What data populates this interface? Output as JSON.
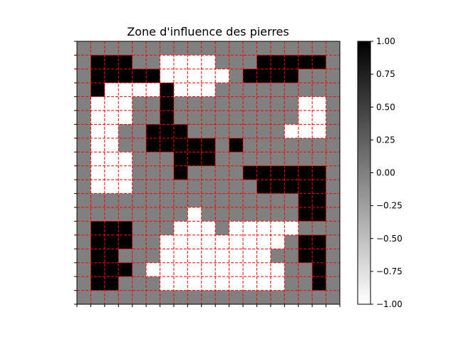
{
  "chart_data": {
    "type": "heatmap",
    "title": "Zone d'influence des pierres",
    "xlabel": "",
    "ylabel": "",
    "grid": true,
    "grid_color": "#ff0000",
    "grid_style": "dashed",
    "colormap": "gray_r",
    "vmin": -1,
    "vmax": 1,
    "colorbar": {
      "location": "right",
      "ticks": [
        1.0,
        0.75,
        0.5,
        0.25,
        0.0,
        -0.25,
        -0.5,
        -0.75,
        -1.0
      ],
      "tick_labels": [
        "1.00",
        "0.75",
        "0.50",
        "0.25",
        "0.00",
        "−0.25",
        "−0.50",
        "−0.75",
        "−1.00"
      ]
    },
    "values": [
      [
        0,
        0,
        0,
        0,
        0,
        0,
        0,
        0,
        0,
        0,
        0,
        0,
        0,
        0,
        0,
        0,
        0,
        0,
        0
      ],
      [
        0,
        1,
        1,
        1,
        0,
        0,
        -1,
        -1,
        -1,
        -1,
        0,
        0,
        0,
        1,
        1,
        1,
        1,
        1,
        0
      ],
      [
        0,
        1,
        1,
        1,
        1,
        1,
        -1,
        -1,
        -1,
        -1,
        -1,
        0,
        1,
        1,
        1,
        1,
        0,
        0,
        0
      ],
      [
        0,
        1,
        -1,
        -1,
        -1,
        -1,
        1,
        -1,
        -1,
        -1,
        0,
        0,
        0,
        0,
        0,
        0,
        0,
        0,
        0
      ],
      [
        0,
        -1,
        -1,
        -1,
        0,
        0,
        1,
        0,
        0,
        0,
        0,
        0,
        0,
        0,
        0,
        0,
        -1,
        -1,
        0
      ],
      [
        0,
        -1,
        -1,
        -1,
        0,
        0,
        1,
        0,
        0,
        0,
        0,
        0,
        0,
        0,
        0,
        0,
        -1,
        -1,
        0
      ],
      [
        0,
        -1,
        -1,
        0,
        0,
        1,
        1,
        1,
        0,
        0,
        0,
        0,
        0,
        0,
        0,
        -1,
        -1,
        -1,
        0
      ],
      [
        0,
        -1,
        -1,
        0,
        0,
        1,
        1,
        1,
        1,
        1,
        0,
        1,
        0,
        0,
        0,
        0,
        0,
        0,
        0
      ],
      [
        0,
        -1,
        -1,
        -1,
        0,
        0,
        0,
        1,
        1,
        1,
        0,
        0,
        0,
        0,
        0,
        0,
        0,
        0,
        0
      ],
      [
        0,
        -1,
        -1,
        -1,
        0,
        0,
        0,
        1,
        0,
        0,
        0,
        0,
        1,
        1,
        1,
        1,
        1,
        1,
        0
      ],
      [
        0,
        -1,
        -1,
        -1,
        0,
        0,
        0,
        0,
        0,
        0,
        0,
        0,
        0,
        1,
        1,
        1,
        1,
        1,
        0
      ],
      [
        0,
        0,
        0,
        0,
        0,
        0,
        0,
        0,
        0,
        0,
        0,
        0,
        0,
        0,
        0,
        0,
        1,
        1,
        0
      ],
      [
        0,
        0,
        0,
        0,
        0,
        0,
        0,
        0,
        -1,
        0,
        0,
        0,
        0,
        0,
        0,
        0,
        1,
        1,
        0
      ],
      [
        0,
        1,
        1,
        1,
        0,
        0,
        0,
        -1,
        -1,
        -1,
        0,
        -1,
        -1,
        -1,
        -1,
        -1,
        0,
        0,
        0
      ],
      [
        0,
        1,
        1,
        1,
        0,
        0,
        -1,
        -1,
        -1,
        -1,
        -1,
        -1,
        -1,
        -1,
        -1,
        0,
        1,
        1,
        0
      ],
      [
        0,
        1,
        1,
        0,
        0,
        0,
        -1,
        -1,
        -1,
        -1,
        -1,
        -1,
        -1,
        -1,
        0,
        0,
        1,
        1,
        0
      ],
      [
        0,
        1,
        1,
        1,
        0,
        -1,
        -1,
        -1,
        -1,
        -1,
        -1,
        -1,
        -1,
        -1,
        -1,
        0,
        0,
        1,
        0
      ],
      [
        0,
        1,
        1,
        0,
        0,
        0,
        -1,
        -1,
        -1,
        -1,
        -1,
        -1,
        -1,
        -1,
        -1,
        0,
        0,
        1,
        0
      ],
      [
        0,
        0,
        0,
        0,
        0,
        0,
        0,
        0,
        0,
        0,
        0,
        0,
        0,
        0,
        0,
        0,
        0,
        0,
        0
      ]
    ]
  }
}
